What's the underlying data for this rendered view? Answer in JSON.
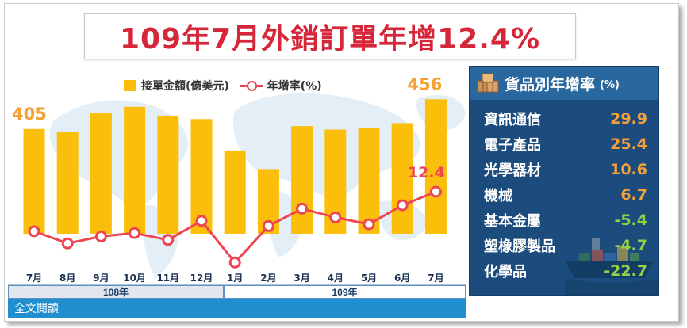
{
  "title": "109年7月外銷訂單年增12.4%",
  "legend": {
    "bar_label": "接單金額(億美元)",
    "line_label": "年增率(%)"
  },
  "chart_data": {
    "type": "bar",
    "categories": [
      "7月",
      "8月",
      "9月",
      "10月",
      "11月",
      "12月",
      "1月",
      "2月",
      "3月",
      "4月",
      "5月",
      "6月",
      "7月"
    ],
    "series": [
      {
        "name": "接單金額(億美元)",
        "type": "bar",
        "values": [
          405,
          400,
          432,
          443,
          428,
          422,
          368,
          336,
          410,
          404,
          406,
          415,
          456
        ],
        "color": "#fbbf0b",
        "labels": {
          "0": "405",
          "12": "456"
        }
      },
      {
        "name": "年增率(%)",
        "type": "line",
        "values": [
          1.0,
          -2.5,
          -0.5,
          0.5,
          -1.5,
          4.0,
          -8.0,
          2.5,
          7.5,
          5.0,
          3.0,
          8.5,
          12.4
        ],
        "color": "#ee4552",
        "labels": {
          "12": "12.4"
        }
      }
    ],
    "year_groups": [
      {
        "label": "108年",
        "start": 0,
        "end": 5
      },
      {
        "label": "109年",
        "start": 6,
        "end": 12
      }
    ]
  },
  "panel": {
    "title": "貨品別年增率",
    "unit": "(%)",
    "rows": [
      {
        "category": "資訊通信",
        "value": "29.9",
        "sign": "pos"
      },
      {
        "category": "電子產品",
        "value": "25.4",
        "sign": "pos"
      },
      {
        "category": "光學器材",
        "value": "10.6",
        "sign": "pos"
      },
      {
        "category": "機械",
        "value": "6.7",
        "sign": "pos"
      },
      {
        "category": "基本金屬",
        "value": "-5.4",
        "sign": "neg"
      },
      {
        "category": "塑橡膠製品",
        "value": "-4.7",
        "sign": "neg"
      },
      {
        "category": "化學品",
        "value": "-22.7",
        "sign": "neg"
      }
    ]
  },
  "footer": {
    "full_text_link": "全文閱讀"
  },
  "icons": {
    "panel_icon": "boxes-icon",
    "ship": "cargo-ship-icon",
    "background": "world-map"
  },
  "colors": {
    "title": "#d6263a",
    "bar": "#fbbf0b",
    "line": "#ee4552",
    "panel_bg": "#1b4c7d",
    "panel_header": "#29679f",
    "positive": "#f5a13b",
    "negative": "#8fd24a",
    "link_bar": "#1f8fd0"
  }
}
